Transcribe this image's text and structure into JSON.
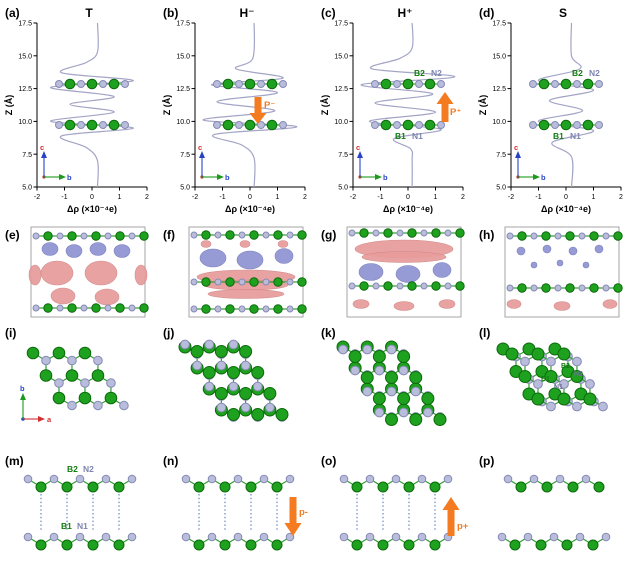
{
  "colors": {
    "boron_green": "#1ea11e",
    "nitrogen_lavender": "#b9bcdb",
    "curve_purple": "#a3a4c6",
    "arrow_orange": "#f47b20",
    "iso_positive_red": "#e89c9c",
    "iso_negative_blue": "#9094d2"
  },
  "row1": {
    "ylabel": "Z (Å)",
    "xlabel": "Δρ (×10⁻⁴e)",
    "yticks": [
      "5.0",
      "7.5",
      "10.0",
      "12.5",
      "15.0",
      "17.5"
    ],
    "xticks": [
      "-2",
      "-1",
      "0",
      "1",
      "2"
    ],
    "panels": [
      {
        "label": "(a)",
        "title": "T",
        "inset": {
          "v": "c",
          "h": "b"
        }
      },
      {
        "label": "(b)",
        "title": "H⁻",
        "arrow_label": "P⁻",
        "arrow_direction": "down",
        "inset": {
          "v": "c",
          "h": "b"
        }
      },
      {
        "label": "(c)",
        "title": "H⁺",
        "arrow_label": "P⁺",
        "arrow_direction": "up",
        "top_labels": [
          "B2",
          "N2"
        ],
        "bottom_labels": [
          "B1",
          "N1"
        ],
        "inset": {
          "v": "c",
          "h": "b"
        }
      },
      {
        "label": "(d)",
        "title": "S",
        "top_labels": [
          "B2",
          "N2"
        ],
        "bottom_labels": [
          "B1",
          "N1"
        ],
        "inset": {
          "v": "c",
          "h": "b"
        }
      }
    ]
  },
  "chart_data": [
    {
      "type": "line",
      "title": "T",
      "xlabel": "Δρ (×10⁻⁴e)",
      "ylabel": "Z (Å)",
      "xlim": [
        -2,
        2
      ],
      "ylim": [
        5,
        17.5
      ],
      "grid": false,
      "legend": false,
      "layers_z": [
        9.75,
        12.85
      ],
      "series": [
        {
          "name": "plane-averaged charge density difference",
          "points": [
            [
              0.2,
              5
            ],
            [
              0.2,
              7
            ],
            [
              -0.2,
              8
            ],
            [
              -1.1,
              8.9
            ],
            [
              1.5,
              9.5
            ],
            [
              -1.5,
              10
            ],
            [
              0.8,
              10.7
            ],
            [
              -0.8,
              11.3
            ],
            [
              0.8,
              11.9
            ],
            [
              -1.5,
              12.6
            ],
            [
              1.5,
              13.1
            ],
            [
              -1.1,
              13.7
            ],
            [
              -0.2,
              14.5
            ],
            [
              0.2,
              15.3
            ],
            [
              0.2,
              17.5
            ]
          ]
        }
      ]
    },
    {
      "type": "line",
      "title": "H⁻",
      "xlabel": "Δρ (×10⁻⁴e)",
      "ylabel": "Z (Å)",
      "xlim": [
        -2,
        2
      ],
      "ylim": [
        5,
        17.5
      ],
      "grid": false,
      "legend": false,
      "layers_z": [
        9.75,
        12.85
      ],
      "series": [
        {
          "name": "plane-averaged charge density difference",
          "points": [
            [
              0.15,
              5
            ],
            [
              0.15,
              7.2
            ],
            [
              -0.3,
              8.2
            ],
            [
              -1.3,
              9
            ],
            [
              1.7,
              9.6
            ],
            [
              -1.7,
              10.1
            ],
            [
              0.9,
              10.8
            ],
            [
              -1.2,
              11.5
            ],
            [
              1,
              12.2
            ],
            [
              -1.4,
              12.8
            ],
            [
              1.2,
              13.3
            ],
            [
              -0.5,
              14
            ],
            [
              0.1,
              14.8
            ],
            [
              0.15,
              17.5
            ]
          ]
        }
      ]
    },
    {
      "type": "line",
      "title": "H⁺",
      "xlabel": "Δρ (×10⁻⁴e)",
      "ylabel": "Z (Å)",
      "xlim": [
        -2,
        2
      ],
      "ylim": [
        5,
        17.5
      ],
      "grid": false,
      "legend": false,
      "layers_z": [
        9.75,
        12.85
      ],
      "series": [
        {
          "name": "plane-averaged charge density difference",
          "points": [
            [
              0.15,
              5
            ],
            [
              0.15,
              7
            ],
            [
              0.1,
              7.9
            ],
            [
              -0.5,
              8.7
            ],
            [
              1.2,
              9.4
            ],
            [
              -1.4,
              10
            ],
            [
              1,
              10.7
            ],
            [
              -1.2,
              11.4
            ],
            [
              0.9,
              12.1
            ],
            [
              -1.7,
              12.8
            ],
            [
              1.7,
              13.4
            ],
            [
              -1.3,
              14
            ],
            [
              -0.3,
              14.8
            ],
            [
              0.15,
              15.6
            ],
            [
              0.15,
              17.5
            ]
          ]
        }
      ]
    },
    {
      "type": "line",
      "title": "S",
      "xlabel": "Δρ (×10⁻⁴e)",
      "ylabel": "Z (Å)",
      "xlim": [
        -2,
        2
      ],
      "ylim": [
        5,
        17.5
      ],
      "grid": false,
      "legend": false,
      "layers_z": [
        9.75,
        12.85
      ],
      "series": [
        {
          "name": "plane-averaged charge density difference",
          "points": [
            [
              0.2,
              5
            ],
            [
              0.2,
              7.3
            ],
            [
              -0.5,
              8.4
            ],
            [
              1,
              9.3
            ],
            [
              -1,
              10
            ],
            [
              0.6,
              10.8
            ],
            [
              -0.6,
              11.6
            ],
            [
              1,
              12.4
            ],
            [
              -1,
              13.1
            ],
            [
              0.5,
              14
            ],
            [
              0.2,
              15
            ],
            [
              0.2,
              17.5
            ]
          ]
        }
      ]
    }
  ],
  "row2": {
    "panels": [
      {
        "label": "(e)"
      },
      {
        "label": "(f)"
      },
      {
        "label": "(g)"
      },
      {
        "label": "(h)"
      }
    ]
  },
  "row3": {
    "panels": [
      {
        "label": "(i)",
        "inset": {
          "v": "b",
          "h": "a"
        }
      },
      {
        "label": "(j)"
      },
      {
        "label": "(k)"
      },
      {
        "label": "(l)",
        "site_labels": [
          "B2",
          "N2",
          "B1",
          "N1"
        ]
      }
    ]
  },
  "row4": {
    "panels": [
      {
        "label": "(m)",
        "top_labels": [
          "B2",
          "N2"
        ],
        "bottom_labels": [
          "B1",
          "N1"
        ]
      },
      {
        "label": "(n)",
        "arrow_label": "p-",
        "arrow_direction": "down"
      },
      {
        "label": "(o)",
        "arrow_label": "p+",
        "arrow_direction": "up"
      },
      {
        "label": "(p)"
      }
    ]
  }
}
